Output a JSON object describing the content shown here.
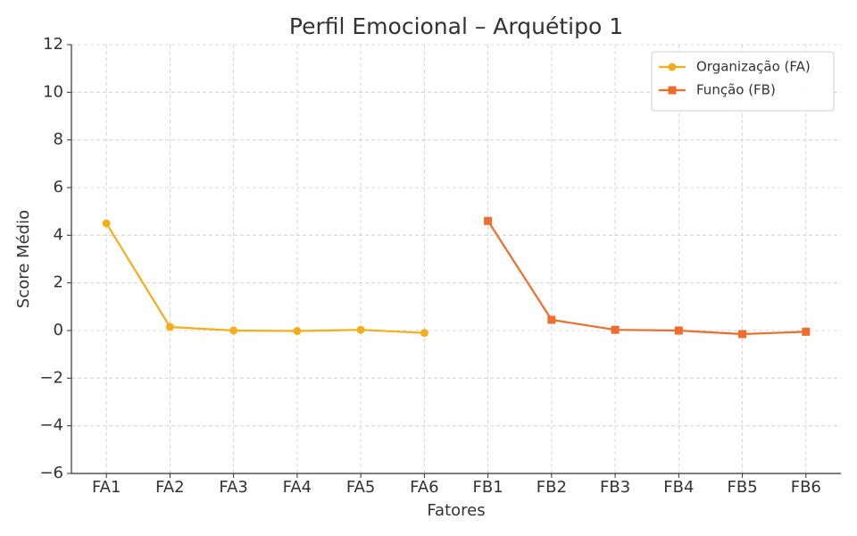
{
  "chart_data": {
    "type": "line",
    "title": "Perfil Emocional – Arquétipo 1",
    "x_label": "Fatores",
    "y_label": "Score Médio",
    "categories": [
      "FA1",
      "FA2",
      "FA3",
      "FA4",
      "FA5",
      "FA6",
      "FB1",
      "FB2",
      "FB3",
      "FB4",
      "FB5",
      "FB6"
    ],
    "series": [
      {
        "name": "Organização (FA)",
        "color": "#f5ae1b",
        "marker": "circle",
        "values": [
          4.5,
          0.15,
          0.0,
          -0.02,
          0.03,
          -0.1,
          null,
          null,
          null,
          null,
          null,
          null
        ]
      },
      {
        "name": "Função (FB)",
        "color": "#ee6c2d",
        "marker": "square",
        "values": [
          null,
          null,
          null,
          null,
          null,
          null,
          4.6,
          0.45,
          0.03,
          0.0,
          -0.15,
          -0.05
        ]
      }
    ],
    "ylim": [
      -6,
      12
    ],
    "yticks": [
      {
        "value": -6,
        "label": "−6"
      },
      {
        "value": -4,
        "label": "−4"
      },
      {
        "value": -2,
        "label": "−2"
      },
      0,
      2,
      4,
      6,
      8,
      10,
      12
    ],
    "grid": true,
    "legend": "upper right"
  }
}
